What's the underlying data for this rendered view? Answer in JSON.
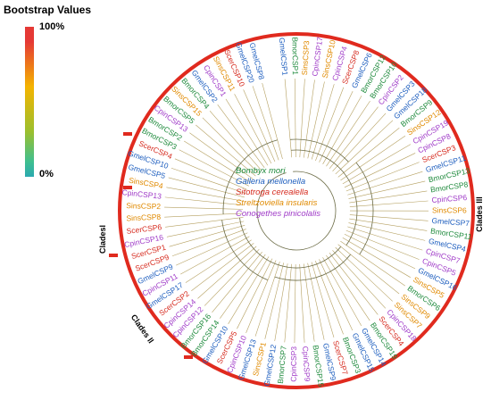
{
  "legend": {
    "title": "Bootstrap Values",
    "max_label": "100%",
    "min_label": "0%"
  },
  "species_legend": [
    {
      "name": "Bombyx mori",
      "color": "#1e8a3c"
    },
    {
      "name": "Galleria mellonella",
      "color": "#1f5fbf"
    },
    {
      "name": "Sitotroga cerealella",
      "color": "#d62b1f"
    },
    {
      "name": "Streltzoviella insularis",
      "color": "#e08a00"
    },
    {
      "name": "Conogethes pinicolalis",
      "color": "#a03cc8"
    }
  ],
  "clade_labels": {
    "clade1": "Cladesl",
    "clade2": "Clades ll",
    "clade3": "Clades lll"
  },
  "colors": {
    "Bmor": "#1e8a3c",
    "Gmel": "#1f5fbf",
    "Scer": "#d62b1f",
    "Sins": "#e08a00",
    "Cpin": "#a03cc8",
    "ring": "#e02a1e",
    "branch": "#b5a060"
  },
  "leaves": [
    "GmelCSP1",
    "BmorCSP1",
    "SinsCSP3",
    "CpinCSP17",
    "SinsCSP10",
    "CpinCSP4",
    "ScerCSP8",
    "GmelCSP6",
    "BmorCSP12",
    "BmorCSP10",
    "CpinCSP2",
    "GmelCSP3",
    "GmelCSP18",
    "BmorCSP9",
    "SinsCSP12",
    "CpinCSP19",
    "CpinCSP8",
    "ScerCSP3",
    "GmelCSP11",
    "BmorCSP13",
    "BmorCSP8",
    "CpinCSP6",
    "SinsCSP6",
    "GmelCSP7",
    "BmorCSP11",
    "GmelCSP4",
    "CpinCSP7",
    "CpinCSP5",
    "GmelCSP16",
    "SinsCSP5",
    "BmorCSP6",
    "SinsCSP9",
    "SinsCSP7",
    "CpinCSP18",
    "ScerCSP4",
    "BmorCSP19",
    "GmelCSP14",
    "GmelCSP15",
    "BmorCSP3",
    "ScerCSP7",
    "GmelCSP9",
    "BmorCSP15",
    "CpinCSP9",
    "CpinCSP3",
    "BmorCSP7",
    "GmelCSP12",
    "SinsCSP1",
    "GmelCSP13",
    "CpinCSP10",
    "ScerCSP5",
    "GmelCSP10",
    "BmorCSP14",
    "BmorCSP16",
    "CpinCSP12",
    "CpinCSP14",
    "ScerCSP2",
    "GmelCSP17",
    "CpinCSP11",
    "GmelCSP9",
    "ScerCSP9",
    "ScerCSP1",
    "CpinCSP16",
    "ScerCSP6",
    "SinsCSP8",
    "SinsCSP2",
    "CpinCSP13",
    "SinsCSP4",
    "GmelCSP5",
    "GmelCSP10",
    "ScerCSP4",
    "BmorCSP3",
    "BmorCSP2",
    "CpinCSP13",
    "BmorCSP5",
    "SinsCSP15",
    "BmorCSP4",
    "GmelCSP2",
    "CpinCSP1",
    "SinsCSP11",
    "ScerCSP10",
    "GmelCSP20",
    "GmelCSP8"
  ]
}
